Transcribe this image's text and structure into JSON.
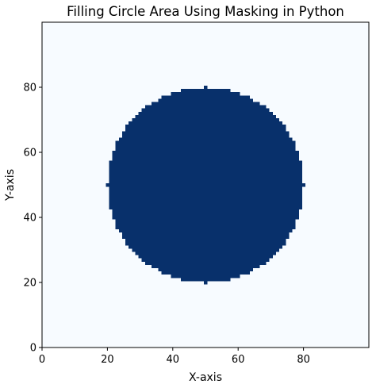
{
  "chart_data": {
    "type": "heatmap",
    "title": "Filling Circle Area Using Masking in Python",
    "xlabel": "X-axis",
    "ylabel": "Y-axis",
    "grid_size": [
      100,
      100
    ],
    "xlim": [
      0,
      100
    ],
    "ylim": [
      0,
      100
    ],
    "xticks": [
      0,
      20,
      40,
      60,
      80
    ],
    "yticks": [
      0,
      20,
      40,
      60,
      80
    ],
    "grid": false,
    "legend": "none",
    "mask": {
      "shape": "circle",
      "center": [
        50,
        50
      ],
      "radius": 30,
      "inside_value": 1,
      "outside_value": 0
    },
    "colormap": "Blues",
    "colors": {
      "inside": "#08306b",
      "outside": "#f7fbff"
    }
  }
}
